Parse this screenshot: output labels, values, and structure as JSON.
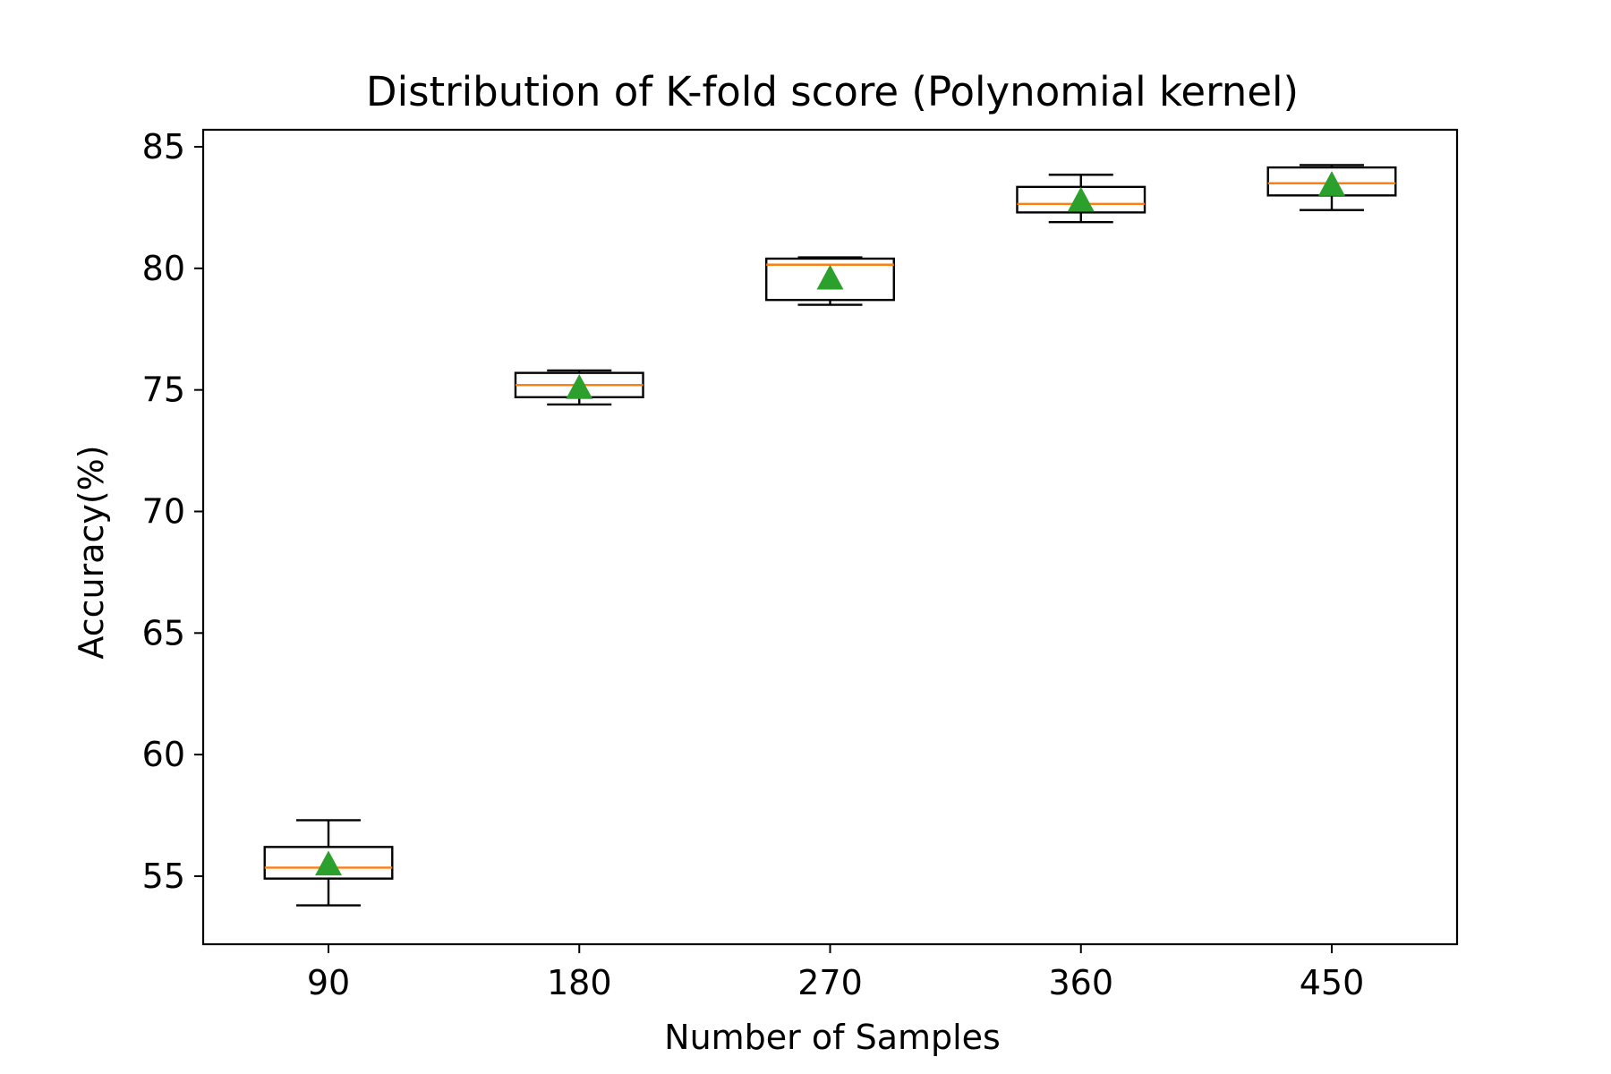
{
  "chart_data": {
    "type": "boxplot",
    "title": "Distribution of K-fold score (Polynomial kernel)",
    "xlabel": "Number of Samples",
    "ylabel": "Accuracy(%)",
    "categories": [
      "90",
      "180",
      "270",
      "360",
      "450"
    ],
    "yticks": [
      55,
      60,
      65,
      70,
      75,
      80,
      85
    ],
    "ylim": [
      52.2,
      85.7
    ],
    "grid": false,
    "legend": "none",
    "boxes": [
      {
        "category": "90",
        "whisker_low": 53.8,
        "q1": 54.9,
        "median": 55.35,
        "q3": 56.2,
        "whisker_high": 57.3,
        "mean": 55.5
      },
      {
        "category": "180",
        "whisker_low": 74.4,
        "q1": 74.7,
        "median": 75.2,
        "q3": 75.7,
        "whisker_high": 75.8,
        "mean": 75.1
      },
      {
        "category": "270",
        "whisker_low": 78.5,
        "q1": 78.7,
        "median": 80.15,
        "q3": 80.4,
        "whisker_high": 80.45,
        "mean": 79.6
      },
      {
        "category": "360",
        "whisker_low": 81.9,
        "q1": 82.3,
        "median": 82.65,
        "q3": 83.35,
        "whisker_high": 83.85,
        "mean": 82.8
      },
      {
        "category": "450",
        "whisker_low": 82.4,
        "q1": 83.0,
        "median": 83.5,
        "q3": 84.15,
        "whisker_high": 84.25,
        "mean": 83.45
      }
    ],
    "colors": {
      "box": "#000000",
      "median": "#ff7f0e",
      "mean_marker": "#2ca02c"
    }
  }
}
